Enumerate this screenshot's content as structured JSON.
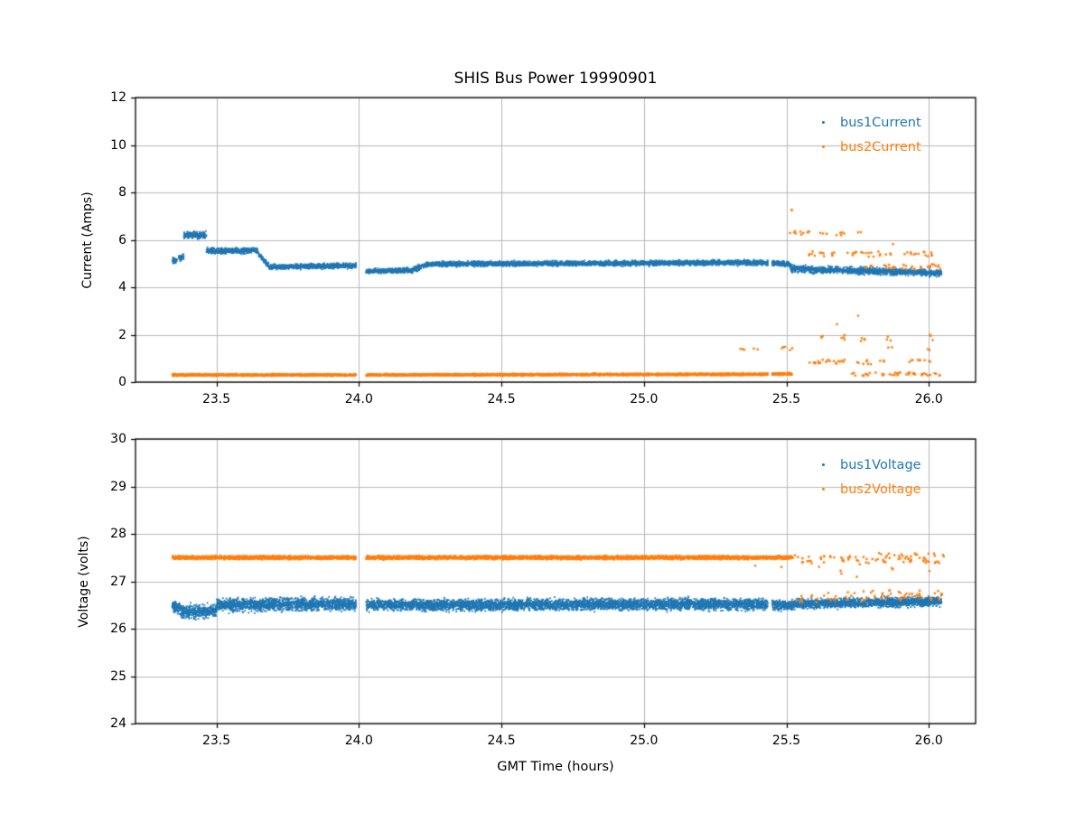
{
  "title": "SHIS Bus Power 19990901",
  "style": {
    "background": "#ffffff",
    "grid_color": "#b8b8b8",
    "spine_color": "#000000",
    "text_color": "#000000",
    "bus1_color": "#1f77b4",
    "bus2_color": "#ff7f0e"
  },
  "chart_data": [
    {
      "type": "scatter",
      "title": "SHIS Bus Power 19990901",
      "xlabel": "",
      "ylabel": "Current (Amps)",
      "xlim": [
        23.216,
        26.164
      ],
      "ylim": [
        0,
        12
      ],
      "xticks": [
        23.5,
        24.0,
        24.5,
        25.0,
        25.5,
        26.0
      ],
      "xtick_labels": [
        "23.5",
        "24.0",
        "24.5",
        "25.0",
        "25.5",
        "26.0"
      ],
      "yticks": [
        0,
        2,
        4,
        6,
        8,
        10,
        12
      ],
      "ytick_labels": [
        "0",
        "2",
        "4",
        "6",
        "8",
        "10",
        "12"
      ],
      "grid": true,
      "legend_position": "upper-right",
      "series": [
        {
          "name": "bus1Current",
          "color": "#1f77b4",
          "bands": [
            [
              23.345,
              23.362,
              5.15,
              5.15,
              0.22,
              7
            ],
            [
              23.368,
              23.386,
              5.25,
              5.25,
              0.22,
              7
            ],
            [
              23.386,
              23.465,
              6.2,
              6.2,
              0.2,
              8
            ],
            [
              23.465,
              23.645,
              5.55,
              5.55,
              0.18,
              8
            ],
            [
              23.645,
              23.69,
              5.45,
              4.82,
              0.14,
              7
            ],
            [
              23.69,
              23.99,
              4.86,
              4.92,
              0.15,
              8
            ],
            [
              24.025,
              24.19,
              4.68,
              4.72,
              0.14,
              8
            ],
            [
              24.19,
              24.245,
              4.75,
              4.98,
              0.17,
              8
            ],
            [
              24.245,
              25.435,
              4.98,
              5.04,
              0.15,
              8
            ],
            [
              25.45,
              25.515,
              5.02,
              4.96,
              0.15,
              8
            ],
            [
              25.515,
              26.045,
              4.78,
              4.6,
              0.2,
              8
            ]
          ],
          "clusters": []
        },
        {
          "name": "bus2Current",
          "color": "#ff7f0e",
          "bands": [
            [
              23.345,
              23.99,
              0.3,
              0.3,
              0.07,
              8
            ],
            [
              24.025,
              25.435,
              0.3,
              0.33,
              0.07,
              8
            ],
            [
              25.45,
              25.52,
              0.34,
              0.34,
              0.07,
              8
            ]
          ],
          "clusters": [
            [
              25.34,
              1.38,
              3,
              0.015,
              0.1
            ],
            [
              25.395,
              1.35,
              2,
              0.01,
              0.08
            ],
            [
              25.487,
              1.42,
              3,
              0.012,
              0.08
            ],
            [
              25.515,
              1.35,
              2,
              0.01,
              0.08
            ],
            [
              25.524,
              7.28,
              2,
              0.006,
              0.06
            ],
            [
              25.545,
              6.33,
              10,
              0.04,
              0.12
            ],
            [
              25.63,
              6.3,
              3,
              0.012,
              0.08
            ],
            [
              25.69,
              6.28,
              5,
              0.018,
              0.1
            ],
            [
              25.758,
              6.33,
              2,
              0.008,
              0.06
            ],
            [
              25.582,
              5.42,
              5,
              0.02,
              0.1
            ],
            [
              25.62,
              5.38,
              4,
              0.02,
              0.1
            ],
            [
              25.67,
              5.42,
              4,
              0.018,
              0.1
            ],
            [
              25.735,
              5.38,
              6,
              0.025,
              0.12
            ],
            [
              25.77,
              5.44,
              3,
              0.012,
              0.08
            ],
            [
              25.8,
              5.38,
              4,
              0.015,
              0.1
            ],
            [
              25.845,
              5.42,
              6,
              0.025,
              0.1
            ],
            [
              25.875,
              5.79,
              1,
              0.004,
              0.04
            ],
            [
              25.925,
              5.4,
              3,
              0.012,
              0.08
            ],
            [
              25.945,
              5.35,
              3,
              0.01,
              0.08
            ],
            [
              25.975,
              5.42,
              4,
              0.015,
              0.08
            ],
            [
              26.01,
              5.4,
              4,
              0.02,
              0.1
            ],
            [
              25.79,
              4.82,
              4,
              0.018,
              0.1
            ],
            [
              25.845,
              4.85,
              5,
              0.02,
              0.1
            ],
            [
              25.885,
              4.8,
              4,
              0.015,
              0.1
            ],
            [
              25.92,
              4.85,
              4,
              0.015,
              0.1
            ],
            [
              25.95,
              4.82,
              3,
              0.012,
              0.08
            ],
            [
              25.985,
              4.85,
              4,
              0.015,
              0.08
            ],
            [
              26.02,
              4.88,
              6,
              0.025,
              0.1
            ],
            [
              26.04,
              4.8,
              2,
              0.008,
              0.06
            ],
            [
              25.68,
              2.48,
              1,
              0.004,
              0.04
            ],
            [
              25.75,
              2.78,
              1,
              0.004,
              0.04
            ],
            [
              25.617,
              1.85,
              3,
              0.012,
              0.1
            ],
            [
              25.69,
              1.88,
              4,
              0.018,
              0.12
            ],
            [
              25.765,
              1.82,
              4,
              0.015,
              0.1
            ],
            [
              25.86,
              1.85,
              3,
              0.012,
              0.1
            ],
            [
              26.005,
              1.9,
              3,
              0.01,
              0.15
            ],
            [
              25.865,
              1.42,
              2,
              0.01,
              0.06
            ],
            [
              25.995,
              1.4,
              2,
              0.008,
              0.06
            ],
            [
              25.592,
              0.88,
              4,
              0.015,
              0.1
            ],
            [
              25.615,
              0.85,
              4,
              0.015,
              0.1
            ],
            [
              25.64,
              0.9,
              4,
              0.015,
              0.1
            ],
            [
              25.665,
              0.85,
              5,
              0.02,
              0.1
            ],
            [
              25.7,
              0.88,
              4,
              0.015,
              0.1
            ],
            [
              25.775,
              0.85,
              7,
              0.03,
              0.1
            ],
            [
              25.835,
              0.88,
              3,
              0.012,
              0.08
            ],
            [
              25.935,
              0.85,
              3,
              0.012,
              0.08
            ],
            [
              25.975,
              0.88,
              4,
              0.015,
              0.08
            ],
            [
              26.005,
              0.92,
              2,
              0.008,
              0.06
            ],
            [
              25.76,
              0.33,
              6,
              0.03,
              0.07
            ],
            [
              25.8,
              0.35,
              4,
              0.02,
              0.07
            ],
            [
              25.86,
              0.33,
              8,
              0.04,
              0.07
            ],
            [
              25.91,
              0.35,
              8,
              0.04,
              0.07
            ],
            [
              25.955,
              0.33,
              6,
              0.03,
              0.07
            ],
            [
              26.0,
              0.35,
              6,
              0.03,
              0.07
            ],
            [
              26.035,
              0.33,
              3,
              0.012,
              0.06
            ]
          ]
        }
      ]
    },
    {
      "type": "scatter",
      "title": "",
      "xlabel": "GMT Time (hours)",
      "ylabel": "Voltage (volts)",
      "xlim": [
        23.216,
        26.164
      ],
      "ylim": [
        24,
        30
      ],
      "xticks": [
        23.5,
        24.0,
        24.5,
        25.0,
        25.5,
        26.0
      ],
      "xtick_labels": [
        "23.5",
        "24.0",
        "24.5",
        "25.0",
        "25.5",
        "26.0"
      ],
      "yticks": [
        24,
        25,
        26,
        27,
        28,
        29,
        30
      ],
      "ytick_labels": [
        "24",
        "25",
        "26",
        "27",
        "28",
        "29",
        "30"
      ],
      "grid": true,
      "legend_position": "upper-right",
      "series": [
        {
          "name": "bus1Voltage",
          "color": "#1f77b4",
          "bands": [
            [
              23.345,
              23.375,
              26.48,
              26.4,
              0.18,
              10
            ],
            [
              23.375,
              23.5,
              26.36,
              26.38,
              0.2,
              10
            ],
            [
              23.5,
              23.99,
              26.5,
              26.52,
              0.19,
              10
            ],
            [
              24.025,
              25.435,
              26.5,
              26.52,
              0.17,
              10
            ],
            [
              25.45,
              25.52,
              26.5,
              26.5,
              0.15,
              10
            ],
            [
              25.52,
              26.045,
              26.52,
              26.58,
              0.14,
              10
            ]
          ],
          "clusters": []
        },
        {
          "name": "bus2Voltage",
          "color": "#ff7f0e",
          "bands": [
            [
              23.345,
              23.99,
              27.5,
              27.5,
              0.055,
              9
            ],
            [
              24.025,
              25.52,
              27.5,
              27.5,
              0.055,
              9
            ]
          ],
          "clusters": [
            [
              25.55,
              27.47,
              8,
              0.03,
              0.09
            ],
            [
              25.6,
              27.45,
              6,
              0.025,
              0.09
            ],
            [
              25.65,
              27.48,
              6,
              0.025,
              0.09
            ],
            [
              25.7,
              27.45,
              8,
              0.03,
              0.09
            ],
            [
              25.76,
              27.44,
              6,
              0.025,
              0.09
            ],
            [
              25.81,
              27.47,
              8,
              0.035,
              0.09
            ],
            [
              25.865,
              27.5,
              10,
              0.04,
              0.1
            ],
            [
              25.91,
              27.46,
              8,
              0.03,
              0.09
            ],
            [
              25.95,
              27.5,
              10,
              0.04,
              0.1
            ],
            [
              26.0,
              27.48,
              10,
              0.04,
              0.12
            ],
            [
              26.035,
              27.5,
              6,
              0.02,
              0.1
            ],
            [
              25.39,
              27.31,
              1,
              0.004,
              0.03
            ],
            [
              25.48,
              27.29,
              1,
              0.004,
              0.03
            ],
            [
              25.618,
              27.26,
              1,
              0.006,
              0.05
            ],
            [
              25.69,
              27.18,
              2,
              0.008,
              0.05
            ],
            [
              25.75,
              27.12,
              1,
              0.004,
              0.03
            ],
            [
              25.87,
              27.28,
              2,
              0.008,
              0.05
            ],
            [
              26.0,
              27.24,
              1,
              0.004,
              0.03
            ],
            [
              25.545,
              26.62,
              3,
              0.015,
              0.08
            ],
            [
              25.56,
              26.68,
              3,
              0.012,
              0.08
            ],
            [
              25.6,
              26.65,
              4,
              0.018,
              0.1
            ],
            [
              25.645,
              26.68,
              4,
              0.018,
              0.1
            ],
            [
              25.68,
              26.63,
              3,
              0.015,
              0.08
            ],
            [
              25.72,
              26.7,
              4,
              0.018,
              0.1
            ],
            [
              25.755,
              26.66,
              4,
              0.018,
              0.1
            ],
            [
              25.79,
              26.72,
              5,
              0.02,
              0.1
            ],
            [
              25.825,
              26.68,
              4,
              0.018,
              0.1
            ],
            [
              25.855,
              26.73,
              5,
              0.02,
              0.1
            ],
            [
              25.89,
              26.68,
              4,
              0.015,
              0.1
            ],
            [
              25.92,
              26.74,
              5,
              0.02,
              0.1
            ],
            [
              25.95,
              26.7,
              4,
              0.015,
              0.1
            ],
            [
              25.985,
              26.72,
              5,
              0.02,
              0.1
            ],
            [
              26.02,
              26.7,
              5,
              0.02,
              0.12
            ],
            [
              26.04,
              26.68,
              3,
              0.01,
              0.08
            ]
          ]
        }
      ]
    }
  ]
}
